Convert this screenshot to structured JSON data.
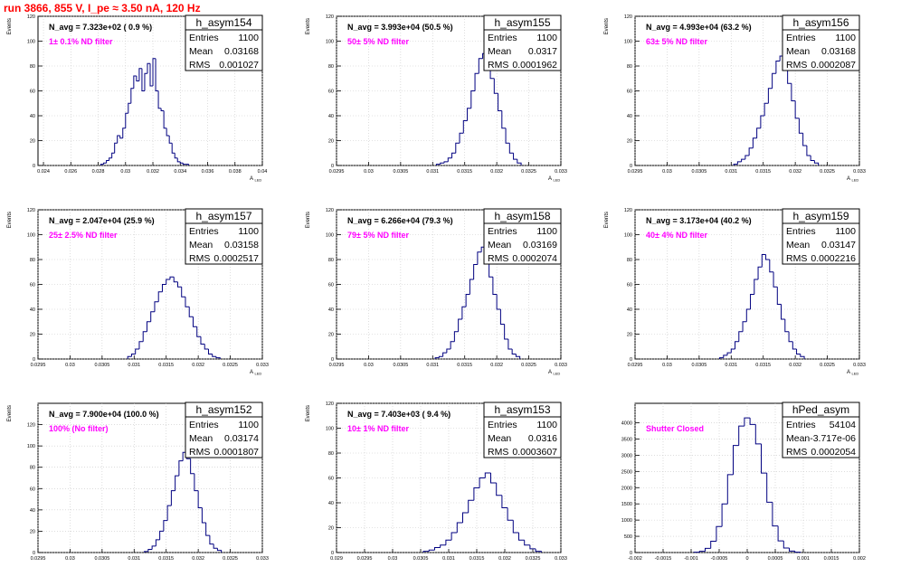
{
  "run_title": "run 3866,   855 V, I_pe ≈ 3.50 nA, 120 Hz",
  "colors": {
    "histogram": "#000080",
    "filter_label": "#ff00ff",
    "run_title": "#ff0000",
    "grid": "#c8c8c8"
  },
  "chart_data": [
    {
      "type": "bar",
      "name": "h_asym154",
      "avg_label": "N_avg = 7.323e+02 ( 0.9 %)",
      "filter_label": "1± 0.1% ND filter",
      "stats": [
        [
          "Entries",
          "1100"
        ],
        [
          "Mean",
          "0.03168"
        ],
        [
          "RMS",
          "0.001027"
        ]
      ],
      "ylabel": "Events",
      "xlabel": "A",
      "xlabel_sub": "LED",
      "xlim": [
        0.0236,
        0.04
      ],
      "ylim": [
        0,
        120
      ],
      "xticks": [
        0.024,
        0.026,
        0.028,
        0.03,
        0.032,
        0.034,
        0.036,
        0.038,
        0.04
      ],
      "xtick_labels": [
        "0.024",
        "0.026",
        "0.028",
        "0.03",
        "0.032",
        "0.034",
        "0.036",
        "0.038",
        "0.04"
      ],
      "yticks": [
        0,
        20,
        40,
        60,
        80,
        100,
        120
      ],
      "ytick_labels": [
        "0",
        "20",
        "40",
        "60",
        "80",
        "100",
        "120"
      ],
      "bin_edges": [
        0.0282,
        0.0284,
        0.0286,
        0.0288,
        0.029,
        0.0292,
        0.0294,
        0.0296,
        0.0298,
        0.03,
        0.0302,
        0.0304,
        0.0306,
        0.0308,
        0.031,
        0.0312,
        0.0314,
        0.0316,
        0.0318,
        0.032,
        0.0322,
        0.0324,
        0.0326,
        0.0328,
        0.033,
        0.0332,
        0.0334,
        0.0336,
        0.0338,
        0.034,
        0.0342,
        0.0344,
        0.0346
      ],
      "values": [
        1,
        2,
        4,
        6,
        10,
        18,
        24,
        22,
        30,
        42,
        50,
        62,
        72,
        68,
        78,
        60,
        74,
        82,
        64,
        86,
        60,
        46,
        44,
        30,
        24,
        18,
        10,
        6,
        3,
        2,
        1,
        1
      ]
    },
    {
      "type": "bar",
      "name": "h_asym155",
      "avg_label": "N_avg = 3.993e+04 (50.5 %)",
      "filter_label": "50± 5% ND filter",
      "stats": [
        [
          "Entries",
          "1100"
        ],
        [
          "Mean",
          "0.0317"
        ],
        [
          "RMS",
          "0.0001962"
        ]
      ],
      "ylabel": "Events",
      "xlabel": "A",
      "xlabel_sub": "LED",
      "xlim": [
        0.0295,
        0.033
      ],
      "ylim": [
        0,
        120
      ],
      "xticks": [
        0.0295,
        0.03,
        0.0305,
        0.031,
        0.0315,
        0.032,
        0.0325,
        0.033
      ],
      "xtick_labels": [
        "0.0295",
        "0.03",
        "0.0305",
        "0.031",
        "0.0315",
        "0.032",
        "0.0325",
        "0.033"
      ],
      "yticks": [
        0,
        20,
        40,
        60,
        80,
        100,
        120
      ],
      "ytick_labels": [
        "0",
        "20",
        "40",
        "60",
        "80",
        "100",
        "120"
      ],
      "bin_edges": [
        0.03106,
        0.03112,
        0.03118,
        0.03124,
        0.0313,
        0.03136,
        0.03142,
        0.03148,
        0.03154,
        0.0316,
        0.03166,
        0.03172,
        0.03178,
        0.03184,
        0.0319,
        0.03196,
        0.03202,
        0.03208,
        0.03214,
        0.0322,
        0.03226,
        0.03232,
        0.03238
      ],
      "values": [
        1,
        2,
        3,
        6,
        10,
        18,
        26,
        36,
        46,
        60,
        74,
        86,
        90,
        82,
        70,
        58,
        44,
        30,
        18,
        10,
        5,
        2
      ]
    },
    {
      "type": "bar",
      "name": "h_asym156",
      "avg_label": "N_avg = 4.993e+04 (63.2 %)",
      "filter_label": "63± 5% ND filter",
      "stats": [
        [
          "Entries",
          "1100"
        ],
        [
          "Mean",
          "0.03168"
        ],
        [
          "RMS",
          "0.0002087"
        ]
      ],
      "ylabel": "Events",
      "xlabel": "A",
      "xlabel_sub": "LED",
      "xlim": [
        0.0295,
        0.033
      ],
      "ylim": [
        0,
        120
      ],
      "xticks": [
        0.0295,
        0.03,
        0.0305,
        0.031,
        0.0315,
        0.032,
        0.0325,
        0.033
      ],
      "xtick_labels": [
        "0.0295",
        "0.03",
        "0.0305",
        "0.031",
        "0.0315",
        "0.032",
        "0.0325",
        "0.033"
      ],
      "yticks": [
        0,
        20,
        40,
        60,
        80,
        100,
        120
      ],
      "ytick_labels": [
        "0",
        "20",
        "40",
        "60",
        "80",
        "100",
        "120"
      ],
      "bin_edges": [
        0.03104,
        0.0311,
        0.03116,
        0.03122,
        0.03128,
        0.03134,
        0.0314,
        0.03146,
        0.03152,
        0.03158,
        0.03164,
        0.0317,
        0.03176,
        0.03182,
        0.03188,
        0.03194,
        0.032,
        0.03206,
        0.03212,
        0.03218,
        0.03224,
        0.0323,
        0.03236
      ],
      "values": [
        1,
        3,
        5,
        8,
        14,
        22,
        30,
        40,
        50,
        62,
        74,
        84,
        88,
        80,
        66,
        52,
        38,
        26,
        16,
        8,
        4,
        2
      ]
    },
    {
      "type": "bar",
      "name": "h_asym157",
      "avg_label": "N_avg = 2.047e+04 (25.9 %)",
      "filter_label": "25± 2.5% ND filter",
      "stats": [
        [
          "Entries",
          "1100"
        ],
        [
          "Mean",
          "0.03158"
        ],
        [
          "RMS",
          "0.0002517"
        ]
      ],
      "ylabel": "Events",
      "xlabel": "A",
      "xlabel_sub": "LED",
      "xlim": [
        0.0295,
        0.033
      ],
      "ylim": [
        0,
        120
      ],
      "xticks": [
        0.0295,
        0.03,
        0.0305,
        0.031,
        0.0315,
        0.032,
        0.0325,
        0.033
      ],
      "xtick_labels": [
        "0.0295",
        "0.03",
        "0.0305",
        "0.031",
        "0.0315",
        "0.032",
        "0.0325",
        "0.033"
      ],
      "yticks": [
        0,
        20,
        40,
        60,
        80,
        100,
        120
      ],
      "ytick_labels": [
        "0",
        "20",
        "40",
        "60",
        "80",
        "100",
        "120"
      ],
      "bin_edges": [
        0.0309,
        0.03096,
        0.03102,
        0.03108,
        0.03114,
        0.0312,
        0.03126,
        0.03132,
        0.03138,
        0.03144,
        0.0315,
        0.03156,
        0.03162,
        0.03168,
        0.03174,
        0.0318,
        0.03186,
        0.03192,
        0.03198,
        0.03204,
        0.0321,
        0.03216,
        0.03222,
        0.03228,
        0.03234
      ],
      "values": [
        2,
        4,
        8,
        14,
        22,
        30,
        38,
        46,
        54,
        60,
        64,
        66,
        62,
        58,
        50,
        42,
        34,
        26,
        18,
        12,
        8,
        4,
        2,
        1
      ]
    },
    {
      "type": "bar",
      "name": "h_asym158",
      "avg_label": "N_avg = 6.266e+04 (79.3 %)",
      "filter_label": "79± 5% ND filter",
      "stats": [
        [
          "Entries",
          "1100"
        ],
        [
          "Mean",
          "0.03169"
        ],
        [
          "RMS",
          "0.0002074"
        ]
      ],
      "ylabel": "Events",
      "xlabel": "A",
      "xlabel_sub": "LED",
      "xlim": [
        0.0295,
        0.033
      ],
      "ylim": [
        0,
        120
      ],
      "xticks": [
        0.0295,
        0.03,
        0.0305,
        0.031,
        0.0315,
        0.032,
        0.0325,
        0.033
      ],
      "xtick_labels": [
        "0.0295",
        "0.03",
        "0.0305",
        "0.031",
        "0.0315",
        "0.032",
        "0.0325",
        "0.033"
      ],
      "yticks": [
        0,
        20,
        40,
        60,
        80,
        100,
        120
      ],
      "ytick_labels": [
        "0",
        "20",
        "40",
        "60",
        "80",
        "100",
        "120"
      ],
      "bin_edges": [
        0.03104,
        0.0311,
        0.03116,
        0.03122,
        0.03128,
        0.03134,
        0.0314,
        0.03146,
        0.03152,
        0.03158,
        0.03164,
        0.0317,
        0.03176,
        0.03182,
        0.03188,
        0.03194,
        0.032,
        0.03206,
        0.03212,
        0.03218,
        0.03224,
        0.0323,
        0.03236
      ],
      "values": [
        1,
        2,
        5,
        8,
        14,
        22,
        32,
        42,
        52,
        64,
        76,
        86,
        90,
        78,
        66,
        52,
        40,
        28,
        16,
        8,
        4,
        2
      ]
    },
    {
      "type": "bar",
      "name": "h_asym159",
      "avg_label": "N_avg = 3.173e+04 (40.2 %)",
      "filter_label": "40± 4% ND filter",
      "stats": [
        [
          "Entries",
          "1100"
        ],
        [
          "Mean",
          "0.03147"
        ],
        [
          "RMS",
          "0.0002216"
        ]
      ],
      "ylabel": "Events",
      "xlabel": "A",
      "xlabel_sub": "LED",
      "xlim": [
        0.0295,
        0.033
      ],
      "ylim": [
        0,
        120
      ],
      "xticks": [
        0.0295,
        0.03,
        0.0305,
        0.031,
        0.0315,
        0.032,
        0.0325,
        0.033
      ],
      "xtick_labels": [
        "0.0295",
        "0.03",
        "0.0305",
        "0.031",
        "0.0315",
        "0.032",
        "0.0325",
        "0.033"
      ],
      "yticks": [
        0,
        20,
        40,
        60,
        80,
        100,
        120
      ],
      "ytick_labels": [
        "0",
        "20",
        "40",
        "60",
        "80",
        "100",
        "120"
      ],
      "bin_edges": [
        0.03082,
        0.03088,
        0.03094,
        0.031,
        0.03106,
        0.03112,
        0.03118,
        0.03124,
        0.0313,
        0.03136,
        0.03142,
        0.03148,
        0.03154,
        0.0316,
        0.03166,
        0.03172,
        0.03178,
        0.03184,
        0.0319,
        0.03196,
        0.03202,
        0.03208,
        0.03214
      ],
      "values": [
        1,
        3,
        5,
        8,
        14,
        22,
        30,
        40,
        52,
        64,
        74,
        84,
        80,
        70,
        58,
        44,
        32,
        22,
        14,
        8,
        4,
        2
      ]
    },
    {
      "type": "bar",
      "name": "h_asym152",
      "avg_label": "N_avg = 7.900e+04 (100.0 %)",
      "filter_label": "100% (No filter)",
      "stats": [
        [
          "Entries",
          "1100"
        ],
        [
          "Mean",
          "0.03174"
        ],
        [
          "RMS",
          "0.0001807"
        ]
      ],
      "ylabel": "Events",
      "xlabel": "A",
      "xlabel_sub": "LED",
      "xlim": [
        0.0295,
        0.033
      ],
      "ylim": [
        0,
        140
      ],
      "xticks": [
        0.0295,
        0.03,
        0.0305,
        0.031,
        0.0315,
        0.032,
        0.0325,
        0.033
      ],
      "xtick_labels": [
        "0.0295",
        "0.03",
        "0.0305",
        "0.031",
        "0.0315",
        "0.032",
        "0.0325",
        "0.033"
      ],
      "yticks": [
        0,
        20,
        40,
        60,
        80,
        100,
        120
      ],
      "ytick_labels": [
        "0",
        "20",
        "40",
        "60",
        "80",
        "100",
        "120"
      ],
      "bin_edges": [
        0.03116,
        0.03122,
        0.03128,
        0.03134,
        0.0314,
        0.03146,
        0.03152,
        0.03158,
        0.03164,
        0.0317,
        0.03176,
        0.03182,
        0.03188,
        0.03194,
        0.032,
        0.03206,
        0.03212,
        0.03218,
        0.03224,
        0.0323,
        0.03236
      ],
      "values": [
        1,
        3,
        6,
        12,
        20,
        30,
        44,
        58,
        72,
        86,
        94,
        88,
        74,
        58,
        42,
        28,
        16,
        8,
        4,
        2
      ]
    },
    {
      "type": "bar",
      "name": "h_asym153",
      "avg_label": "N_avg = 7.403e+03 ( 9.4 %)",
      "filter_label": "10± 1% ND filter",
      "stats": [
        [
          "Entries",
          "1100"
        ],
        [
          "Mean",
          "0.0316"
        ],
        [
          "RMS",
          "0.0003607"
        ]
      ],
      "ylabel": "Events",
      "xlabel": "A",
      "xlabel_sub": "LED",
      "xlim": [
        0.029,
        0.033
      ],
      "ylim": [
        0,
        120
      ],
      "xticks": [
        0.029,
        0.0295,
        0.03,
        0.0305,
        0.031,
        0.0315,
        0.032,
        0.0325,
        0.033
      ],
      "xtick_labels": [
        "0.029",
        "0.0295",
        "0.03",
        "0.0305",
        "0.031",
        "0.0315",
        "0.032",
        "0.0325",
        "0.033"
      ],
      "yticks": [
        0,
        20,
        40,
        60,
        80,
        100,
        120
      ],
      "ytick_labels": [
        "0",
        "20",
        "40",
        "60",
        "80",
        "100",
        "120"
      ],
      "bin_edges": [
        0.03055,
        0.03065,
        0.03075,
        0.03085,
        0.03095,
        0.03105,
        0.03115,
        0.03125,
        0.03135,
        0.03145,
        0.03155,
        0.03165,
        0.03175,
        0.03185,
        0.03195,
        0.03205,
        0.03215,
        0.03225,
        0.03235,
        0.03245,
        0.03255,
        0.03265
      ],
      "values": [
        1,
        2,
        4,
        6,
        10,
        16,
        24,
        32,
        42,
        52,
        60,
        64,
        56,
        46,
        36,
        26,
        16,
        10,
        6,
        3,
        1
      ]
    },
    {
      "type": "bar",
      "name": "hPed_asym",
      "avg_label": "",
      "filter_label": "Shutter Closed",
      "stats": [
        [
          "Entries",
          "54104"
        ],
        [
          "Mean",
          "-3.717e-06"
        ],
        [
          "RMS",
          "0.0002054"
        ]
      ],
      "ylabel": "",
      "xlabel": "",
      "xlabel_sub": "",
      "xlim": [
        -0.002,
        0.002
      ],
      "ylim": [
        0,
        4600
      ],
      "xticks": [
        -0.002,
        -0.0015,
        -0.001,
        -0.0005,
        0,
        0.0005,
        0.001,
        0.0015,
        0.002
      ],
      "xtick_labels": [
        "-0.002",
        "-0.0015",
        "-0.001",
        "-0.0005",
        "0",
        "0.0005",
        "0.001",
        "0.0015",
        "0.002"
      ],
      "yticks": [
        0,
        500,
        1000,
        1500,
        2000,
        2500,
        3000,
        3500,
        4000
      ],
      "ytick_labels": [
        "0",
        "500",
        "1000",
        "1500",
        "2000",
        "2500",
        "3000",
        "3500",
        "4000"
      ],
      "bin_edges": [
        -0.00095,
        -0.00085,
        -0.00075,
        -0.00065,
        -0.00055,
        -0.00045,
        -0.00035,
        -0.00025,
        -0.00015,
        -5e-05,
        5e-05,
        0.00015,
        0.00025,
        0.00035,
        0.00045,
        0.00055,
        0.00065,
        0.00075,
        0.00085,
        0.00095
      ],
      "values": [
        10,
        40,
        130,
        350,
        800,
        1500,
        2400,
        3300,
        3900,
        4150,
        3950,
        3350,
        2450,
        1550,
        820,
        360,
        140,
        45,
        12
      ]
    }
  ]
}
